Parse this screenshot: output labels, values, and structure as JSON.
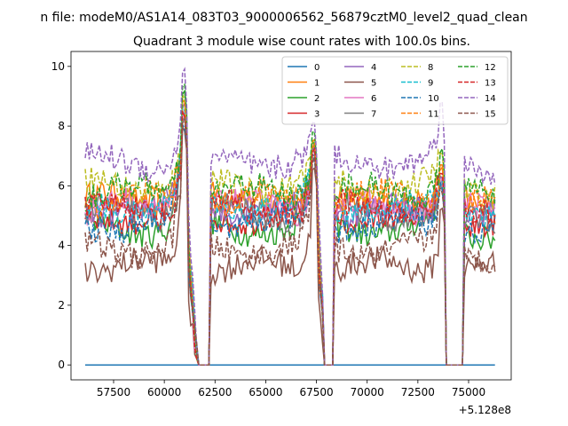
{
  "chart_data": {
    "type": "line",
    "suptitle": "n file: modeM0/AS1A14_083T03_9000006562_56879cztM0_level2_quad_clean",
    "title": "Quadrant 3 module wise count rates with 100.0s bins.",
    "xlabel": "",
    "ylabel": "",
    "xlim": [
      55400,
      77100
    ],
    "ylim": [
      -0.5,
      10.5
    ],
    "x_offset_text": "+5.128e8",
    "x_ticks": [
      57500,
      60000,
      62500,
      65000,
      67500,
      70000,
      72500,
      75000
    ],
    "x_tick_labels": [
      "57500",
      "60000",
      "62500",
      "65000",
      "67500",
      "70000",
      "72500",
      "75000"
    ],
    "y_ticks": [
      0,
      2,
      4,
      6,
      8,
      10
    ],
    "y_tick_labels": [
      "0",
      "2",
      "4",
      "6",
      "8",
      "10"
    ],
    "legend_position": "upper right",
    "legend_columns": 4,
    "observation_span": [
      56100,
      76300
    ],
    "data_gaps": [
      [
        61700,
        62200
      ],
      [
        67900,
        68300
      ],
      [
        73900,
        74700
      ]
    ],
    "series": [
      {
        "name": "0",
        "color": "#1f77b4",
        "dash": "solid",
        "base": 0.0,
        "peaks": [
          0.0,
          0.0,
          0.0
        ]
      },
      {
        "name": "1",
        "color": "#ff7f0e",
        "dash": "solid",
        "base": 5.5,
        "peaks": [
          9.0,
          7.5,
          6.8
        ]
      },
      {
        "name": "2",
        "color": "#2ca02c",
        "dash": "solid",
        "base": 4.6,
        "peaks": [
          9.2,
          7.6,
          6.5
        ]
      },
      {
        "name": "3",
        "color": "#d62728",
        "dash": "solid",
        "base": 5.0,
        "peaks": [
          8.5,
          7.3,
          6.4
        ]
      },
      {
        "name": "4",
        "color": "#9467bd",
        "dash": "solid",
        "base": 5.2,
        "peaks": [
          8.8,
          7.5,
          6.5
        ]
      },
      {
        "name": "5",
        "color": "#8c564b",
        "dash": "solid",
        "base": 3.3,
        "peaks": [
          8.0,
          6.8,
          5.4
        ]
      },
      {
        "name": "6",
        "color": "#e377c2",
        "dash": "solid",
        "base": 5.3,
        "peaks": [
          8.6,
          7.4,
          6.3
        ]
      },
      {
        "name": "7",
        "color": "#7f7f7f",
        "dash": "solid",
        "base": 5.1,
        "peaks": [
          8.4,
          7.2,
          6.1
        ]
      },
      {
        "name": "8",
        "color": "#bcbd22",
        "dash": "dashed",
        "base": 6.0,
        "peaks": [
          9.1,
          7.8,
          7.3
        ]
      },
      {
        "name": "9",
        "color": "#17becf",
        "dash": "dashed",
        "base": 5.3,
        "peaks": [
          8.7,
          7.4,
          6.4
        ]
      },
      {
        "name": "10",
        "color": "#1f77b4",
        "dash": "dashed",
        "base": 4.7,
        "peaks": [
          8.2,
          7.1,
          6.2
        ]
      },
      {
        "name": "11",
        "color": "#ff7f0e",
        "dash": "dashed",
        "base": 5.6,
        "peaks": [
          8.9,
          7.6,
          6.8
        ]
      },
      {
        "name": "12",
        "color": "#2ca02c",
        "dash": "dashed",
        "base": 5.8,
        "peaks": [
          9.6,
          8.0,
          7.4
        ]
      },
      {
        "name": "13",
        "color": "#d62728",
        "dash": "dashed",
        "base": 5.2,
        "peaks": [
          8.6,
          7.4,
          6.6
        ]
      },
      {
        "name": "14",
        "color": "#9467bd",
        "dash": "dashed",
        "base": 6.8,
        "peaks": [
          10.0,
          8.2,
          8.8
        ]
      },
      {
        "name": "15",
        "color": "#8c564b",
        "dash": "dashed",
        "base": 3.9,
        "peaks": [
          8.3,
          7.0,
          6.0
        ]
      }
    ]
  }
}
